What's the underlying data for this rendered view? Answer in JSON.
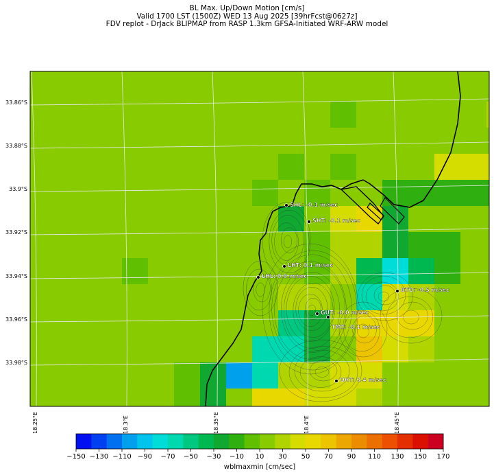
{
  "title": {
    "line1": "BL Max. Up/Down Motion [cm/s]",
    "line2": "Valid 1700 LST (1500Z) WED 13 Aug 2025 [39hrFcst@0627z]",
    "line3": "FDV replot - DrJack BLIPMAP from RASP 1.3km GFSA-Initiated WRF-ARW model"
  },
  "lat_labels": [
    "33.86°S",
    "33.88°S",
    "33.9°S",
    "33.92°S",
    "33.94°S",
    "33.96°S",
    "33.98°S"
  ],
  "lon_labels": [
    "18.25°E",
    "18.3°E",
    "18.35°E",
    "18.4°E",
    "18.45°E"
  ],
  "stations": [
    {
      "label": "SHL: -0.1 m/sec"
    },
    {
      "label": "SHT: -0.1 m/sec"
    },
    {
      "label": "LHT: 0.1 m/sec"
    },
    {
      "label": "LHL: 0.0 m/sec"
    },
    {
      "label": "BTO: -0.5 m/sec"
    },
    {
      "label": "GUT: -0.0 m/sec"
    },
    {
      "label": "TMT: -0.1 m/sec"
    },
    {
      "label": "OHT: 0.4 m/sec"
    }
  ],
  "colorbar": {
    "ticks": [
      "−150",
      "−130",
      "−110",
      "−90",
      "−70",
      "−50",
      "−30",
      "−10",
      "10",
      "30",
      "50",
      "70",
      "90",
      "110",
      "130",
      "150",
      "170"
    ],
    "label": "wblmaxmin [cm/sec]",
    "colors": [
      "#0010f0",
      "#0040f0",
      "#0070f0",
      "#00a0ec",
      "#00c4ec",
      "#00dcd8",
      "#00d8b0",
      "#00c880",
      "#00b850",
      "#10a830",
      "#30b010",
      "#60c000",
      "#88cc00",
      "#b0d400",
      "#d4dc00",
      "#e8d800",
      "#ecc400",
      "#eca800",
      "#ec8c00",
      "#ec7000",
      "#ec5000",
      "#e43000",
      "#dc1000",
      "#cc0020"
    ]
  }
}
